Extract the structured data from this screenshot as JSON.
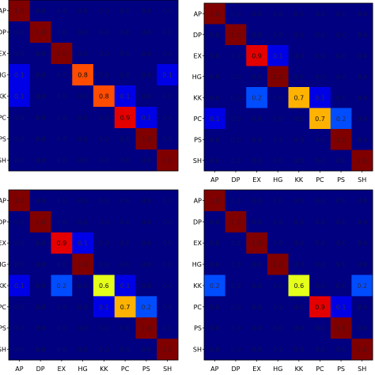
{
  "chart_data": [
    {
      "type": "heatmap",
      "panel": "top-left",
      "x_categories": [
        "AP",
        "DP",
        "EX",
        "HG",
        "KK",
        "PC",
        "PS",
        "SH"
      ],
      "y_categories": [
        "AP",
        "DP",
        "EX",
        "HG",
        "KK",
        "PC",
        "PS",
        "SH"
      ],
      "values": [
        [
          1.0,
          0.0,
          0.0,
          0.0,
          0.0,
          0.0,
          0.0,
          0.0
        ],
        [
          0.0,
          1.0,
          0.0,
          0.0,
          0.0,
          0.0,
          0.0,
          0.0
        ],
        [
          0.0,
          0.0,
          1.0,
          0.0,
          0.0,
          0.0,
          0.0,
          0.0
        ],
        [
          0.1,
          0.0,
          0.0,
          0.8,
          0.0,
          0.0,
          0.0,
          0.1
        ],
        [
          0.1,
          0.0,
          0.0,
          0.0,
          0.8,
          0.1,
          0.0,
          0.0
        ],
        [
          0.0,
          0.0,
          0.0,
          0.0,
          0.0,
          0.9,
          0.1,
          0.0
        ],
        [
          0.0,
          0.0,
          0.0,
          0.0,
          0.0,
          0.0,
          1.0,
          0.0
        ],
        [
          0.0,
          0.0,
          0.0,
          0.0,
          0.0,
          0.0,
          0.0,
          1.0
        ]
      ],
      "vmin": 0,
      "vmax": 1,
      "colormap": "jet",
      "grid": false,
      "legend": "none",
      "x_tick_labels_visible": false
    },
    {
      "type": "heatmap",
      "panel": "top-right",
      "x_categories": [
        "AP",
        "DP",
        "EX",
        "HG",
        "KK",
        "PC",
        "PS",
        "SH"
      ],
      "y_categories": [
        "AP",
        "DP",
        "EX",
        "HG",
        "KK",
        "PC",
        "PS",
        "SH"
      ],
      "values": [
        [
          1.0,
          0.0,
          0.0,
          0.0,
          0.0,
          0.0,
          0.0,
          0.0
        ],
        [
          0.0,
          1.0,
          0.0,
          0.0,
          0.0,
          0.0,
          0.0,
          0.0
        ],
        [
          0.0,
          0.0,
          0.9,
          0.1,
          0.0,
          0.0,
          0.0,
          0.0
        ],
        [
          0.0,
          0.0,
          0.0,
          1.0,
          0.0,
          0.0,
          0.0,
          0.0
        ],
        [
          0.0,
          0.0,
          0.2,
          0.0,
          0.7,
          0.1,
          0.0,
          0.0
        ],
        [
          0.1,
          0.0,
          0.0,
          0.0,
          0.0,
          0.7,
          0.2,
          0.0
        ],
        [
          0.0,
          0.0,
          0.0,
          0.0,
          0.0,
          0.0,
          1.0,
          0.0
        ],
        [
          0.0,
          0.0,
          0.0,
          0.0,
          0.0,
          0.0,
          0.0,
          1.0
        ]
      ],
      "vmin": 0,
      "vmax": 1,
      "colormap": "jet",
      "grid": false,
      "legend": "none",
      "x_tick_labels_visible": true
    },
    {
      "type": "heatmap",
      "panel": "bottom-left",
      "x_categories": [
        "AP",
        "DP",
        "EX",
        "HG",
        "KK",
        "PC",
        "PS",
        "SH"
      ],
      "y_categories": [
        "AP",
        "DP",
        "EX",
        "HG",
        "KK",
        "PC",
        "PS",
        "SH"
      ],
      "values": [
        [
          1.0,
          0.0,
          0.0,
          0.0,
          0.0,
          0.0,
          0.0,
          0.0
        ],
        [
          0.0,
          1.0,
          0.0,
          0.0,
          0.0,
          0.0,
          0.0,
          0.0
        ],
        [
          0.0,
          0.0,
          0.9,
          0.1,
          0.0,
          0.0,
          0.0,
          0.0
        ],
        [
          0.0,
          0.0,
          0.0,
          1.0,
          0.0,
          0.0,
          0.0,
          0.0
        ],
        [
          0.1,
          0.0,
          0.2,
          0.0,
          0.6,
          0.1,
          0.0,
          0.0
        ],
        [
          0.0,
          0.0,
          0.0,
          0.0,
          0.1,
          0.7,
          0.2,
          0.0
        ],
        [
          0.0,
          0.0,
          0.0,
          0.0,
          0.0,
          0.0,
          1.0,
          0.0
        ],
        [
          0.0,
          0.0,
          0.0,
          0.0,
          0.0,
          0.0,
          0.0,
          1.0
        ]
      ],
      "vmin": 0,
      "vmax": 1,
      "colormap": "jet",
      "grid": false,
      "legend": "none",
      "x_tick_labels_visible": true
    },
    {
      "type": "heatmap",
      "panel": "bottom-right",
      "x_categories": [
        "AP",
        "DP",
        "EX",
        "HG",
        "KK",
        "PC",
        "PS",
        "SH"
      ],
      "y_categories": [
        "AP",
        "DP",
        "EX",
        "HG",
        "KK",
        "PC",
        "PS",
        "SH"
      ],
      "values": [
        [
          1.0,
          0.0,
          0.0,
          0.0,
          0.0,
          0.0,
          0.0,
          0.0
        ],
        [
          0.0,
          1.0,
          0.0,
          0.0,
          0.0,
          0.0,
          0.0,
          0.0
        ],
        [
          0.0,
          0.0,
          1.0,
          0.0,
          0.0,
          0.0,
          0.0,
          0.0
        ],
        [
          0.0,
          0.0,
          0.0,
          1.0,
          0.0,
          0.0,
          0.0,
          0.0
        ],
        [
          0.2,
          0.0,
          0.0,
          0.0,
          0.6,
          0.0,
          0.0,
          0.2
        ],
        [
          0.0,
          0.0,
          0.0,
          0.0,
          0.0,
          0.9,
          0.1,
          0.0
        ],
        [
          0.0,
          0.0,
          0.0,
          0.0,
          0.0,
          0.0,
          1.0,
          0.0
        ],
        [
          0.0,
          0.0,
          0.0,
          0.0,
          0.0,
          0.0,
          0.0,
          1.0
        ]
      ],
      "vmin": 0,
      "vmax": 1,
      "colormap": "jet",
      "grid": false,
      "legend": "none",
      "x_tick_labels_visible": true
    }
  ]
}
